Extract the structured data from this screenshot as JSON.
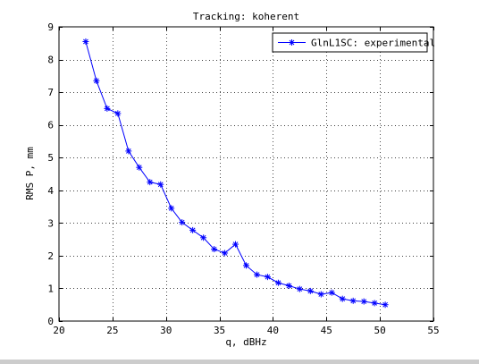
{
  "chart_data": {
    "type": "line",
    "title": "Tracking: koherent",
    "xlabel": "q, dBHz",
    "ylabel": "RMS P, mm",
    "xlim": [
      20,
      55
    ],
    "ylim": [
      0,
      9
    ],
    "xticks": [
      20,
      25,
      30,
      35,
      40,
      45,
      50,
      55
    ],
    "yticks": [
      0,
      1,
      2,
      3,
      4,
      5,
      6,
      7,
      8,
      9
    ],
    "grid": true,
    "legend_position": "top-right",
    "series": [
      {
        "name": "GlnL1SC: experimental",
        "color": "#0000ff",
        "marker": "star",
        "x": [
          22.5,
          23.5,
          24.5,
          25.5,
          26.5,
          27.5,
          28.5,
          29.5,
          30.5,
          31.5,
          32.5,
          33.5,
          34.5,
          35.5,
          36.5,
          37.5,
          38.5,
          39.5,
          40.5,
          41.5,
          42.5,
          43.5,
          44.5,
          45.5,
          46.5,
          47.5,
          48.5,
          49.5,
          50.5
        ],
        "y": [
          8.55,
          7.35,
          6.5,
          6.35,
          5.2,
          4.7,
          4.25,
          4.18,
          3.45,
          3.02,
          2.78,
          2.55,
          2.2,
          2.08,
          2.35,
          1.7,
          1.42,
          1.35,
          1.17,
          1.08,
          0.98,
          0.92,
          0.82,
          0.87,
          0.68,
          0.62,
          0.6,
          0.55,
          0.5
        ]
      }
    ]
  }
}
